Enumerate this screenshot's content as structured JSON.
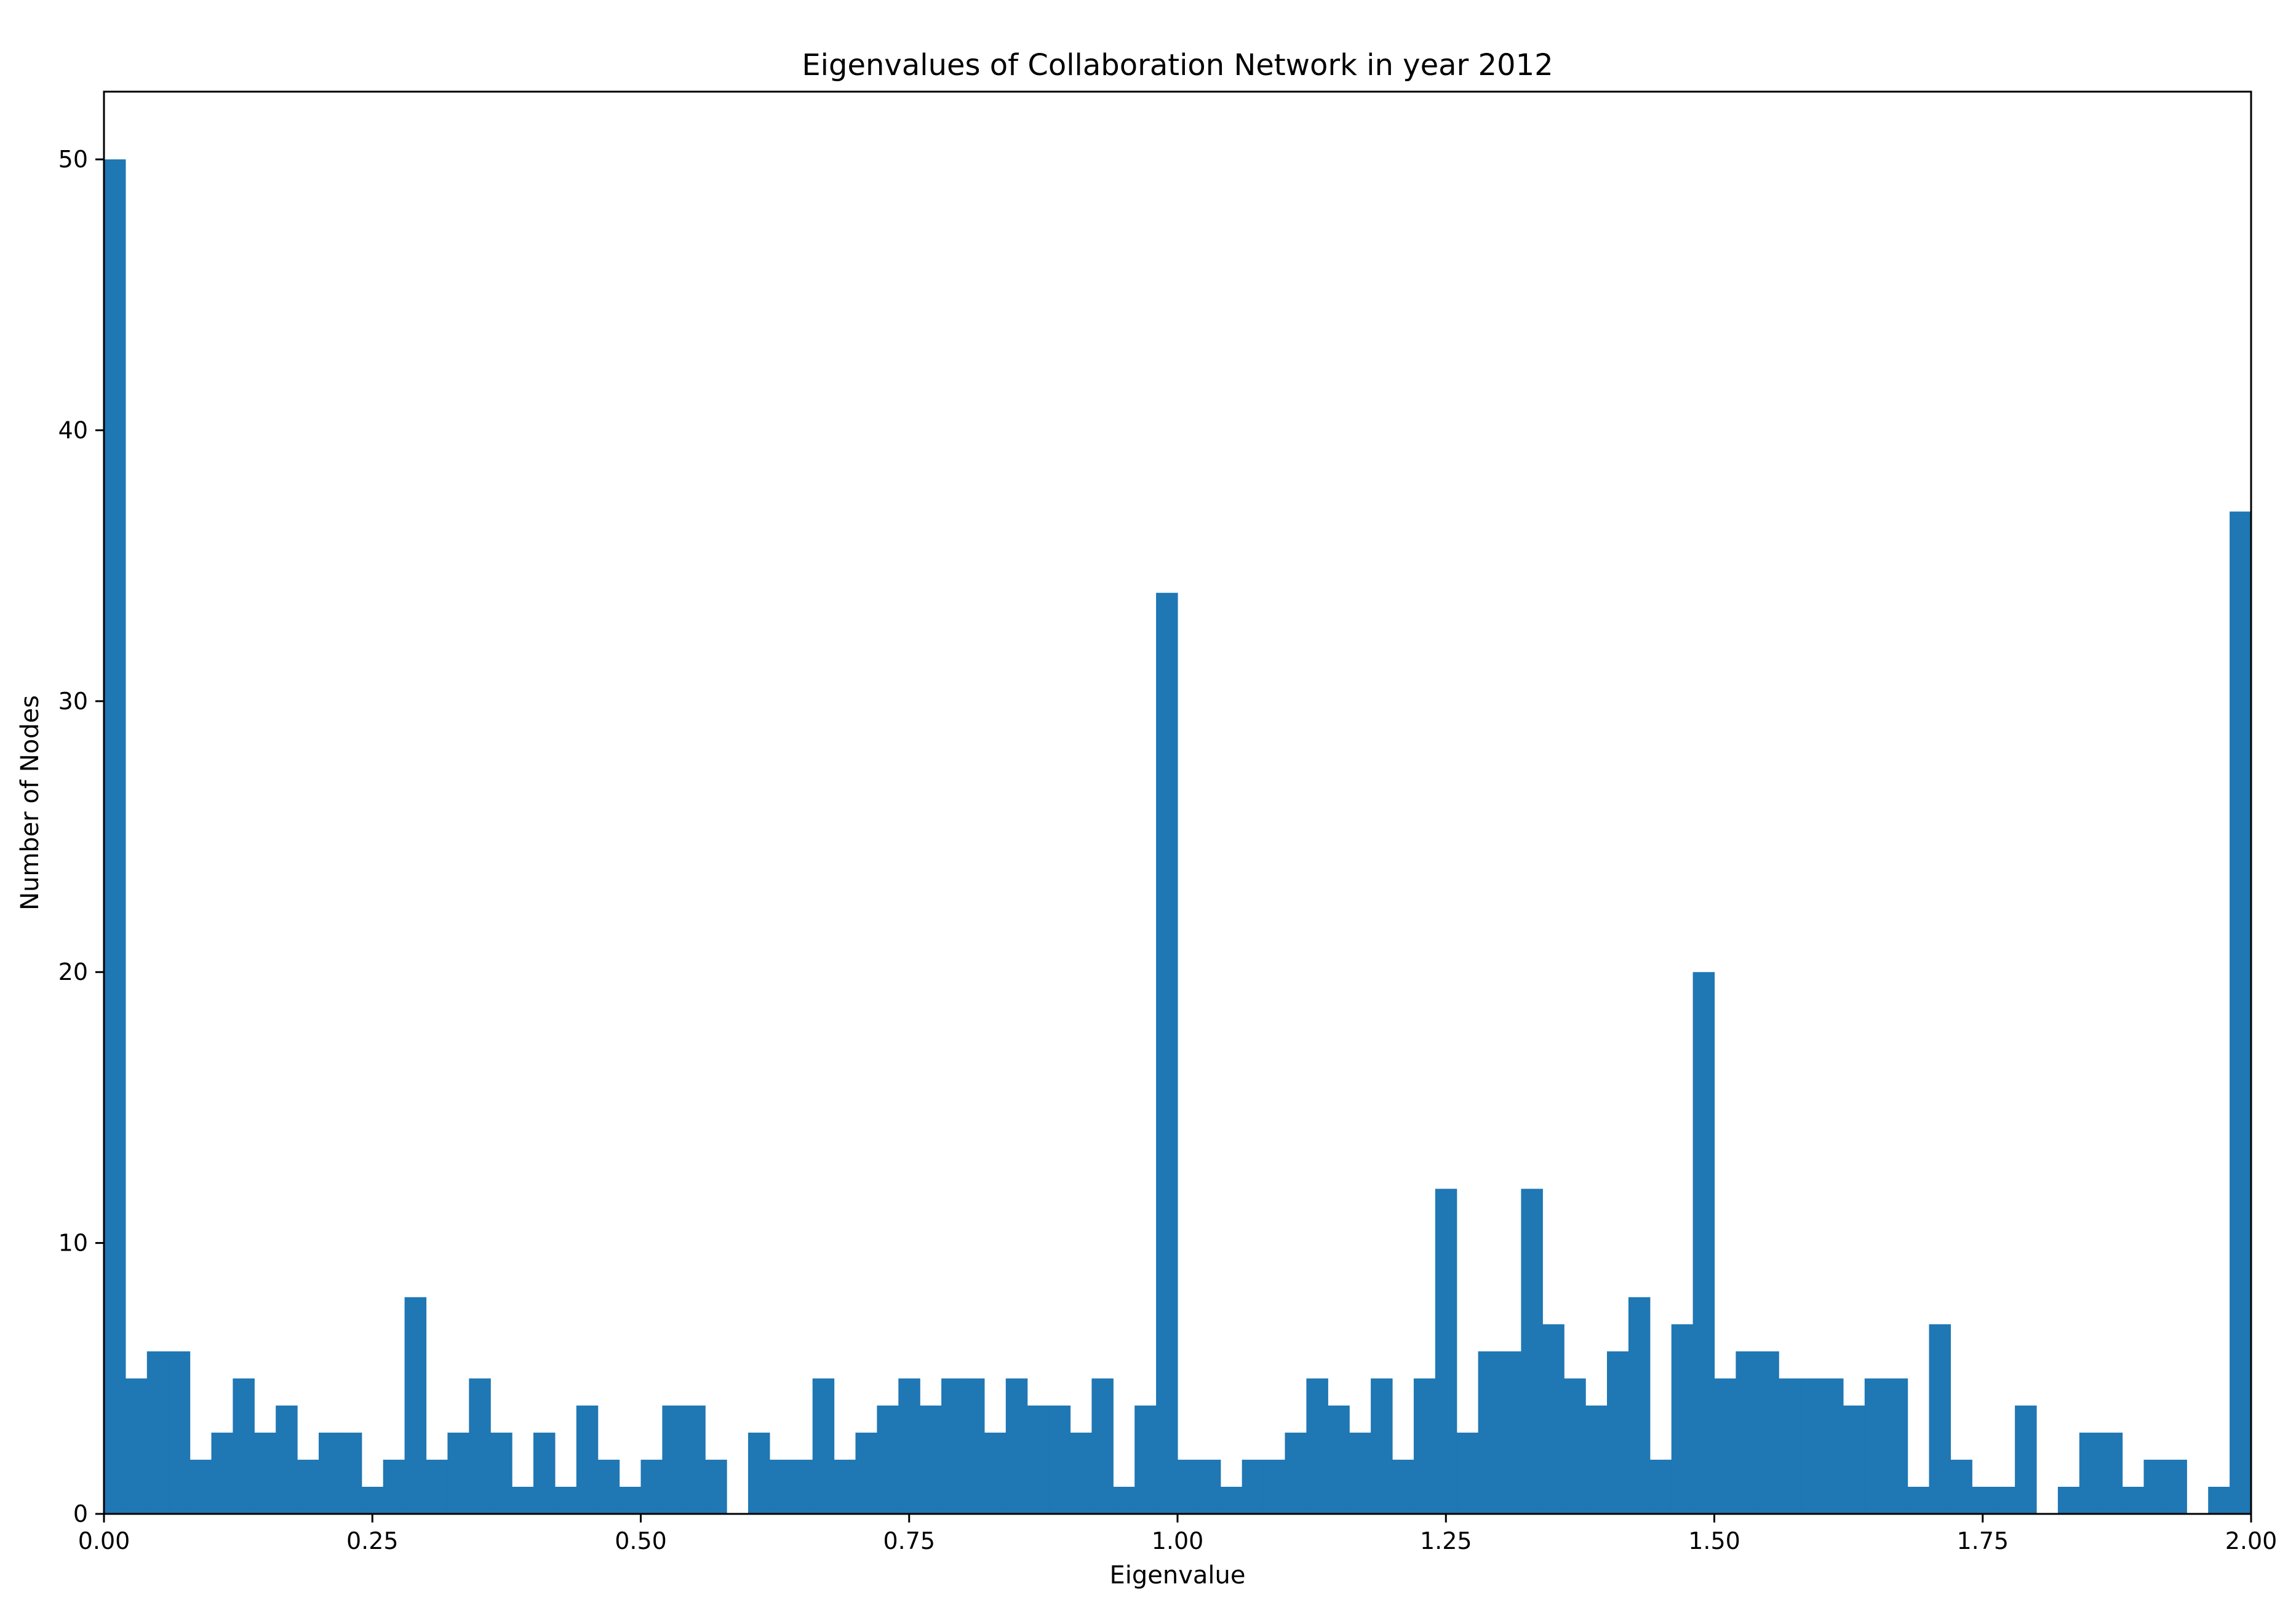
{
  "chart_data": {
    "type": "bar",
    "title": "Eigenvalues of Collaboration Network in year 2012",
    "xlabel": "Eigenvalue",
    "ylabel": "Number of Nodes",
    "xlim": [
      0,
      2
    ],
    "ylim": [
      0,
      52.5
    ],
    "bin_width": 0.02,
    "bin_start": 0.0,
    "grid": false,
    "legend": "none",
    "bar_color": "#1f77b4",
    "x_ticks": [
      "0.00",
      "0.25",
      "0.50",
      "0.75",
      "1.00",
      "1.25",
      "1.50",
      "1.75",
      "2.00"
    ],
    "y_ticks": [
      "0",
      "10",
      "20",
      "30",
      "40",
      "50"
    ],
    "values": [
      50,
      5,
      6,
      6,
      2,
      3,
      5,
      3,
      4,
      2,
      3,
      3,
      1,
      2,
      8,
      2,
      3,
      5,
      3,
      1,
      3,
      1,
      4,
      2,
      1,
      2,
      4,
      4,
      2,
      0,
      3,
      2,
      2,
      5,
      2,
      3,
      4,
      5,
      4,
      5,
      5,
      3,
      5,
      4,
      4,
      3,
      5,
      1,
      4,
      34,
      2,
      2,
      1,
      2,
      2,
      3,
      5,
      4,
      3,
      5,
      2,
      5,
      12,
      3,
      6,
      6,
      12,
      7,
      5,
      4,
      6,
      8,
      2,
      7,
      20,
      5,
      6,
      6,
      5,
      5,
      5,
      4,
      5,
      5,
      1,
      7,
      2,
      1,
      1,
      4,
      0,
      1,
      3,
      3,
      1,
      2,
      2,
      0,
      1,
      37
    ]
  }
}
